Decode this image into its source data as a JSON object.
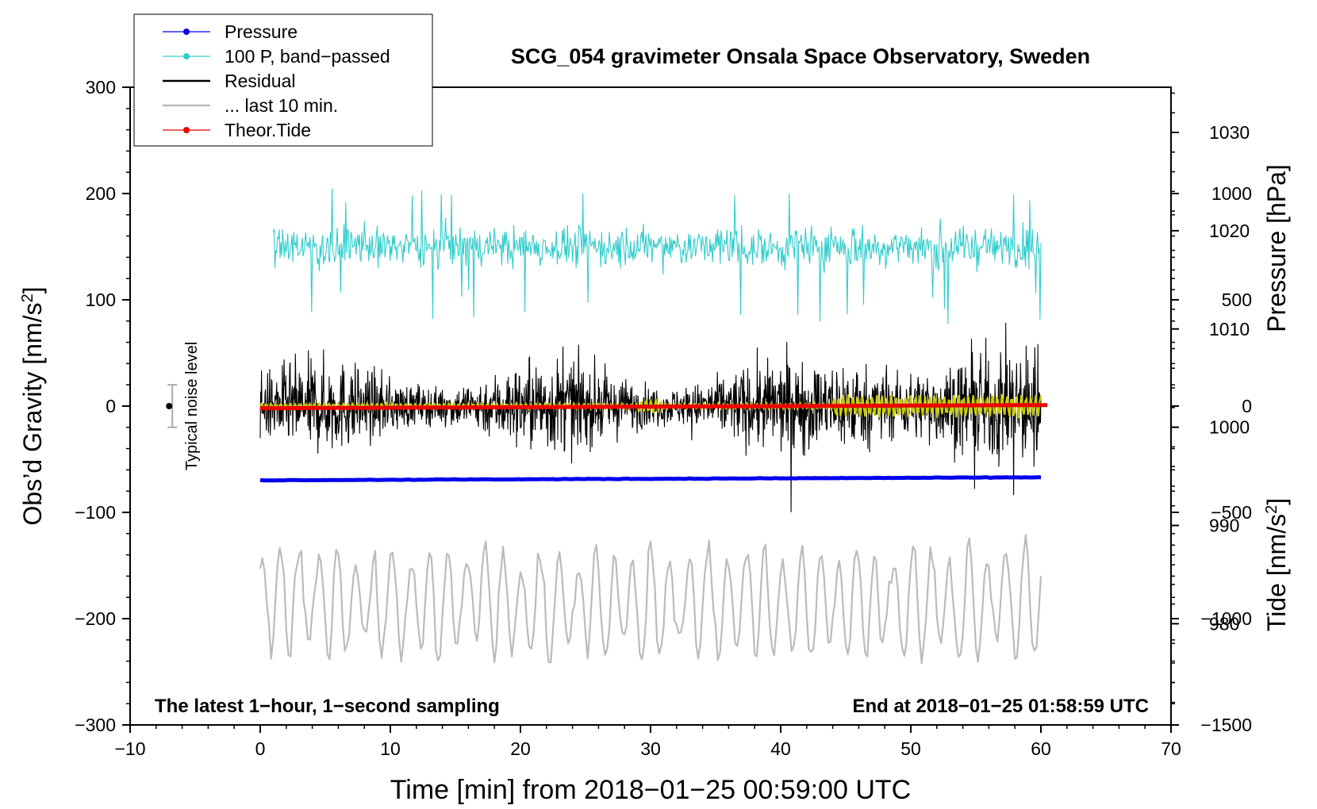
{
  "chart_data": {
    "type": "line",
    "title": "SCG_054 gravimeter Onsala Space Observatory, Sweden",
    "xlabel": "Time [min] from 2018−01−25 00:59:00 UTC",
    "ylabel_left": "Obs’d Gravity [nm/s",
    "ylabel_left_sup": "2",
    "ylabel_left_close": "]",
    "ylabel_right_pressure": "Pressure [hPa]",
    "ylabel_right_tide": "Tide [nm/s",
    "ylabel_right_tide_sup": "2",
    "ylabel_right_tide_close": "]",
    "annotation_left": "The latest 1−hour, 1−second sampling",
    "annotation_right": "End at 2018−01−25 01:58:59 UTC",
    "noise_label": "Typical noise level",
    "xlim": [
      -10,
      70
    ],
    "ylim": [
      -300,
      300
    ],
    "pressure_lim": [
      969.7,
      1034.6
    ],
    "tide_lim": [
      -1500,
      1500
    ],
    "x_ticks": [
      "−10",
      "0",
      "10",
      "20",
      "30",
      "40",
      "50",
      "60",
      "70"
    ],
    "y_ticks": [
      "−300",
      "−200",
      "−100",
      "0",
      "100",
      "200",
      "300"
    ],
    "pressure_ticks": [
      "980",
      "990",
      "1000",
      "1010",
      "1020",
      "1030"
    ],
    "tide_ticks": [
      "−1500",
      "−1000",
      "−500",
      "0",
      "500",
      "1000"
    ],
    "legend": [
      {
        "label": "Pressure",
        "color": "#0000ee",
        "marker": true
      },
      {
        "label": "100 P, band−passed",
        "color": "#33cccc",
        "marker": true
      },
      {
        "label": "Residual",
        "color": "#000000",
        "marker": false
      },
      {
        "label": "... last 10 min.",
        "color": "#bbbbbb",
        "marker": false
      },
      {
        "label": "Theor.Tide",
        "color": "#ee0000",
        "marker": true
      }
    ],
    "series": [
      {
        "name": "Pressure",
        "axis": "pressure",
        "x_range": [
          0,
          60
        ],
        "start": 994.6,
        "end": 994.9,
        "color": "#0000ee"
      },
      {
        "name": "100 P, band−passed",
        "axis": "gravity",
        "x_range": [
          1,
          60
        ],
        "center": 150,
        "amplitude": 20,
        "color": "#33cccc"
      },
      {
        "name": "Residual",
        "axis": "gravity",
        "x_range": [
          0,
          60
        ],
        "center": 0,
        "amplitude": 40,
        "color": "#000000"
      },
      {
        "name": "Residual smoothed",
        "axis": "gravity",
        "x_range": [
          0,
          60
        ],
        "center": 0,
        "amplitude": 3,
        "color": "#cccc00"
      },
      {
        "name": "... last 10 min.",
        "axis": "gravity",
        "x_range": [
          0,
          60
        ],
        "center": -185,
        "amplitude": 55,
        "color": "#bbbbbb"
      },
      {
        "name": "Theor.Tide",
        "axis": "tide",
        "x_range": [
          0,
          60.5
        ],
        "start": -10,
        "end": 5,
        "color": "#ee0000"
      }
    ],
    "noise_bar": {
      "x": -7,
      "center": 0,
      "half_range": 20
    }
  }
}
